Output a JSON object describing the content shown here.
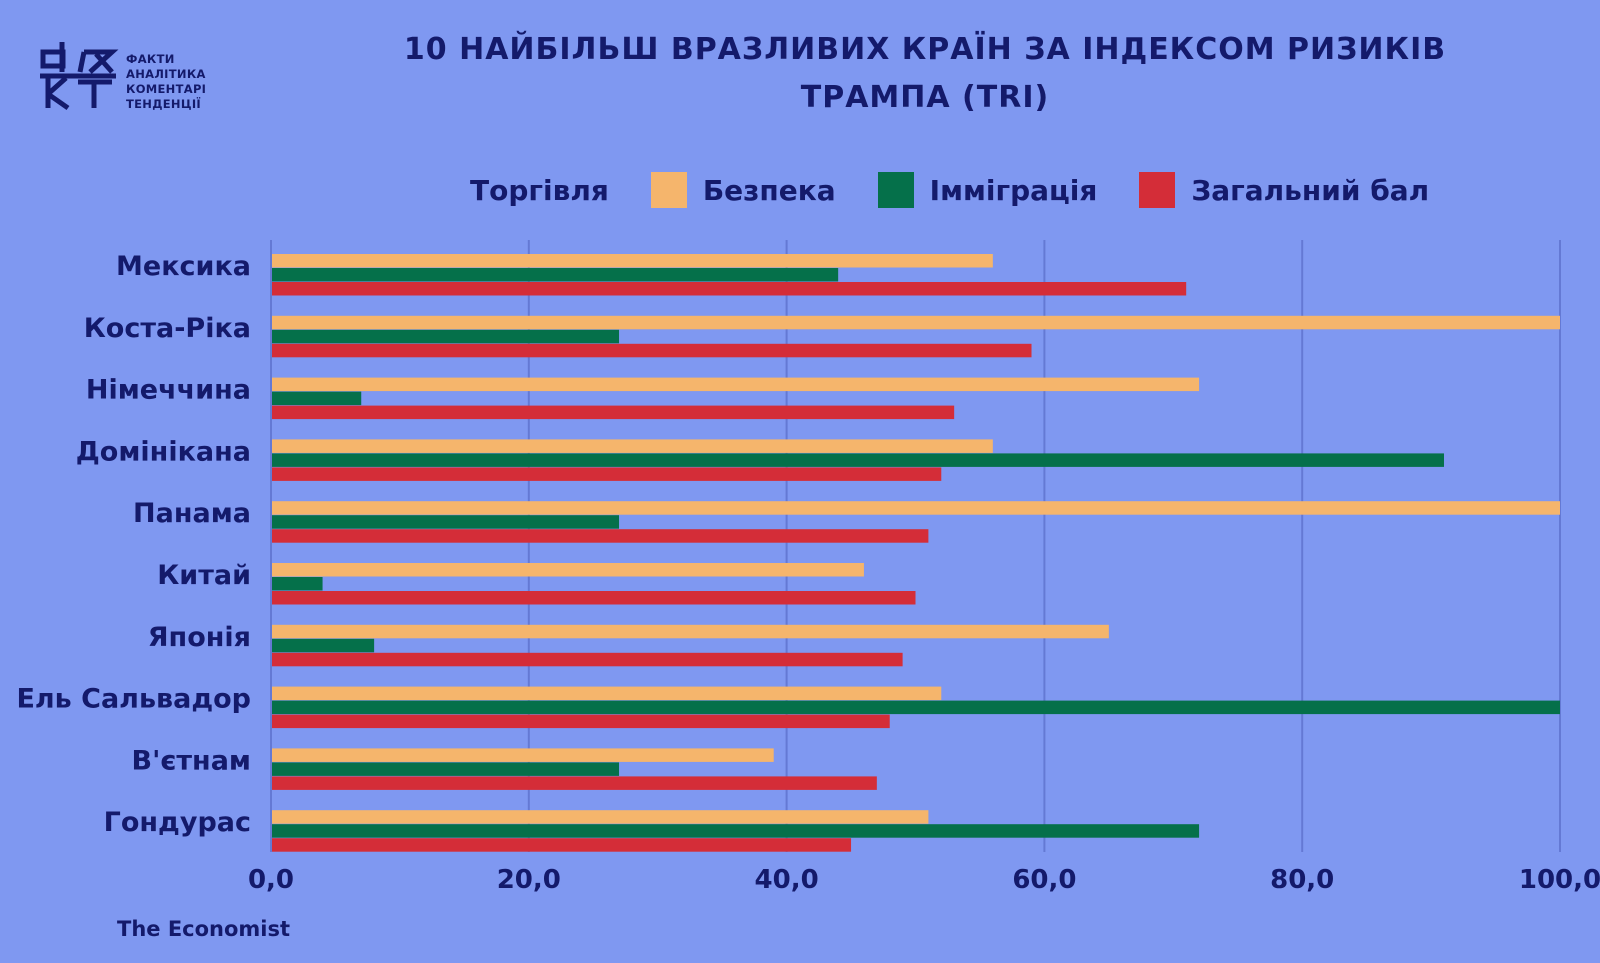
{
  "logo": {
    "mark": "ФАКТ",
    "lines": [
      "ФАКТИ",
      "АНАЛІТИКА",
      "КОМЕНТАРІ",
      "ТЕНДЕНЦІЇ"
    ]
  },
  "title_line1": "10 НАЙБІЛЬШ ВРАЗЛИВИХ КРАЇН ЗА ІНДЕКСОМ РИЗИКІВ",
  "title_line2": "ТРАМПА (TRI)",
  "source": "The Economist",
  "colors": {
    "background": "#7f98f1",
    "text": "#141a6b",
    "grid": "#6479d4",
    "trade": "#7f98f1",
    "security": "#f5b56c",
    "immigration": "#05704a",
    "total": "#d42d38"
  },
  "chart_data": {
    "type": "bar",
    "orientation": "horizontal",
    "categories": [
      "Мексика",
      "Коста-Ріка",
      "Німеччина",
      "Домінікана",
      "Панама",
      "Китай",
      "Японія",
      "Ель Сальвадор",
      "В'єтнам",
      "Гондурас"
    ],
    "series": [
      {
        "name": "Торгівля",
        "color": "#7f98f1",
        "values": [
          0,
          0,
          0,
          0,
          0,
          0,
          0,
          0,
          0,
          0
        ]
      },
      {
        "name": "Безпека",
        "color": "#f5b56c",
        "values": [
          56,
          100,
          72,
          56,
          100,
          46,
          65,
          52,
          39,
          51
        ]
      },
      {
        "name": "Імміграція",
        "color": "#05704a",
        "values": [
          44,
          27,
          7,
          91,
          27,
          4,
          8,
          100,
          27,
          72
        ]
      },
      {
        "name": "Загальний бал",
        "color": "#d42d38",
        "values": [
          71,
          59,
          53,
          52,
          51,
          50,
          49,
          48,
          47,
          45
        ]
      }
    ],
    "xlim": [
      0,
      100
    ],
    "x_ticks": [
      "0,0",
      "20,0",
      "40,0",
      "60,0",
      "80,0",
      "100,0"
    ],
    "grid": true,
    "legend_position": "top"
  }
}
